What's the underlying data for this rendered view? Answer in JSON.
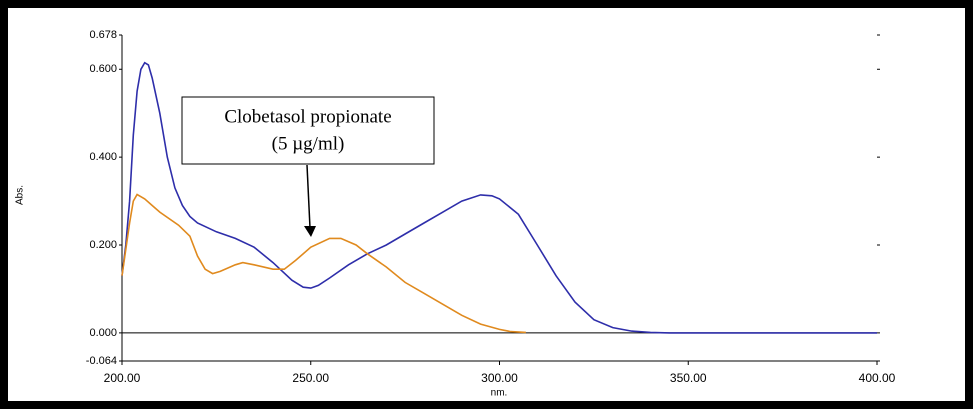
{
  "chart_data": {
    "type": "line",
    "xlabel": "nm.",
    "ylabel": "Abs.",
    "annotations": [
      "Clobetasol propionate",
      "(5 µg/ml)"
    ],
    "xlim": [
      200,
      400
    ],
    "xticks": [
      {
        "value": 200,
        "label": "200.00"
      },
      {
        "value": 250,
        "label": "250.00"
      },
      {
        "value": 300,
        "label": "300.00"
      },
      {
        "value": 350,
        "label": "350.00"
      },
      {
        "value": 400,
        "label": "400.00"
      }
    ],
    "ylim": [
      -0.064,
      0.678
    ],
    "yticks": [
      -0.064,
      {
        "value": 0,
        "label": "0.000"
      },
      {
        "value": 0.2,
        "label": "0.200"
      },
      {
        "value": 0.4,
        "label": "0.400"
      },
      {
        "value": 0.6,
        "label": "0.600"
      },
      0.678
    ],
    "series": [
      {
        "color": "#2e2eaa",
        "x": [
          200,
          201,
          202,
          203,
          204,
          205,
          206,
          207,
          208,
          210,
          212,
          214,
          216,
          218,
          220,
          225,
          230,
          235,
          240,
          245,
          248,
          250,
          252,
          255,
          260,
          265,
          270,
          275,
          280,
          285,
          290,
          295,
          298,
          300,
          305,
          310,
          315,
          320,
          325,
          330,
          335,
          340,
          345,
          350,
          400
        ],
        "values": [
          0.13,
          0.2,
          0.3,
          0.45,
          0.55,
          0.6,
          0.615,
          0.61,
          0.58,
          0.5,
          0.4,
          0.33,
          0.29,
          0.265,
          0.25,
          0.23,
          0.215,
          0.195,
          0.16,
          0.12,
          0.104,
          0.102,
          0.108,
          0.125,
          0.155,
          0.18,
          0.2,
          0.225,
          0.25,
          0.275,
          0.3,
          0.314,
          0.312,
          0.305,
          0.27,
          0.2,
          0.13,
          0.07,
          0.03,
          0.012,
          0.004,
          0.001,
          0,
          0,
          0
        ]
      },
      {
        "color": "#e08a1e",
        "x": [
          200,
          202,
          203,
          204,
          205,
          206,
          208,
          210,
          215,
          218,
          220,
          222,
          224,
          226,
          230,
          232,
          235,
          240,
          243,
          246,
          250,
          255,
          258,
          262,
          265,
          270,
          275,
          280,
          285,
          290,
          295,
          300,
          303,
          307
        ],
        "values": [
          0.13,
          0.25,
          0.3,
          0.315,
          0.31,
          0.305,
          0.29,
          0.275,
          0.245,
          0.22,
          0.175,
          0.145,
          0.135,
          0.14,
          0.155,
          0.16,
          0.155,
          0.145,
          0.145,
          0.165,
          0.195,
          0.215,
          0.215,
          0.2,
          0.18,
          0.15,
          0.115,
          0.09,
          0.065,
          0.04,
          0.02,
          0.008,
          0.003,
          0.001
        ]
      }
    ]
  }
}
